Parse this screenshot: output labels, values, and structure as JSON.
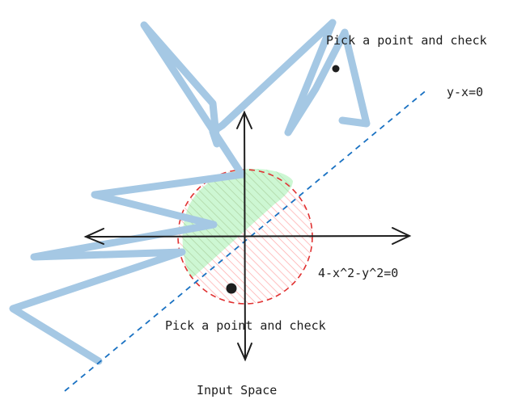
{
  "labels": {
    "pick_top": "Pick a point and check",
    "pick_bottom": "Pick a point and check",
    "line_eq": "y-x=0",
    "circle_eq": "4-x^2-y^2=0",
    "caption": "Input Space"
  },
  "colors": {
    "ink": "#1e1e1e",
    "scribble": "#a5c8e4",
    "dashed_line": "#1971c2",
    "circle_stroke": "#e03131",
    "green_fill": "#b2f2bb",
    "red_hatch": "#ffa8a8"
  }
}
